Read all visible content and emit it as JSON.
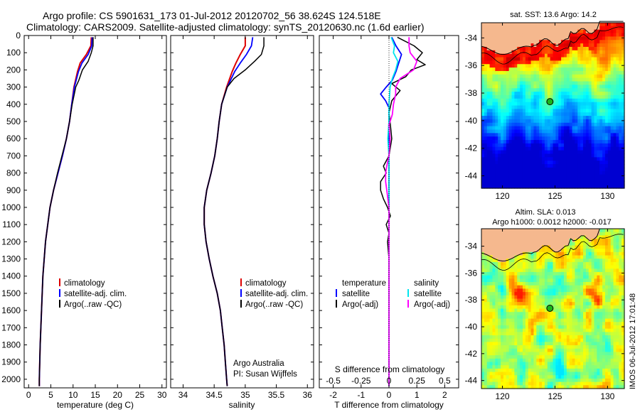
{
  "title": {
    "line1": "Argo profile: CS 5901631_173 01-Jul-2012 20120702_56 38.624S 124.518E",
    "line2": "Climatology: CARS2009. Satellite-adjusted climatology: synTS_20120630.nc (1.6d earlier)"
  },
  "colors": {
    "climatology": "#dd0000",
    "satellite": "#0000ff",
    "argo": "#000000",
    "sal_satellite": "#00e5ee",
    "sal_argo": "#ff00ff",
    "land": "#f5b88e",
    "marker": "#1ab31a"
  },
  "chart_data": [
    {
      "type": "line",
      "name": "temperature-panel",
      "xlabel": "temperature (deg C)",
      "ylabel": "",
      "xlim": [
        -1,
        31
      ],
      "ylim": [
        2050,
        0
      ],
      "xticks": [
        "0",
        "5",
        "10",
        "15",
        "20",
        "25",
        "30"
      ],
      "yticks": [
        "0",
        "100",
        "200",
        "300",
        "400",
        "500",
        "600",
        "700",
        "800",
        "900",
        "1000",
        "1100",
        "1200",
        "1300",
        "1400",
        "1500",
        "1600",
        "1700",
        "1800",
        "1900",
        "2000"
      ],
      "legend": [
        "climatology",
        "satellite-adj. clim.",
        "Argo(..raw -QC)"
      ],
      "series": [
        {
          "name": "climatology",
          "depth": [
            10,
            60,
            110,
            160,
            210,
            300,
            400,
            500,
            600,
            700,
            800,
            900,
            1000,
            1200,
            1400,
            1600,
            1800,
            2000,
            2040
          ],
          "values": [
            14.1,
            14.0,
            13.0,
            11.6,
            11.0,
            10.2,
            9.7,
            9.2,
            8.5,
            7.6,
            6.6,
            5.6,
            4.8,
            3.8,
            3.2,
            2.9,
            2.6,
            2.4,
            2.4
          ]
        },
        {
          "name": "satellite-adj. clim.",
          "depth": [
            10,
            60,
            110,
            160,
            210,
            300,
            400,
            500,
            600,
            700,
            800,
            900,
            1000,
            1200,
            1400,
            1600,
            1800,
            2000,
            2040
          ],
          "values": [
            14.3,
            14.2,
            13.4,
            12.0,
            11.2,
            10.3,
            9.7,
            9.2,
            8.5,
            7.6,
            6.6,
            5.6,
            4.8,
            3.8,
            3.2,
            2.9,
            2.6,
            2.4,
            2.4
          ]
        },
        {
          "name": "Argo(..raw -QC)",
          "depth": [
            10,
            60,
            100,
            150,
            200,
            260,
            300,
            400,
            500,
            600,
            700,
            800,
            900,
            1000,
            1200,
            1400,
            1600,
            1800,
            2000,
            2040
          ],
          "values": [
            14.5,
            14.5,
            14.1,
            13.4,
            12.1,
            11.3,
            10.6,
            9.8,
            9.2,
            8.5,
            7.5,
            6.5,
            5.6,
            4.8,
            3.8,
            3.2,
            2.9,
            2.6,
            2.4,
            2.4
          ]
        }
      ]
    },
    {
      "type": "line",
      "name": "salinity-panel",
      "xlabel": "salinity",
      "xlim": [
        33.8,
        36.1
      ],
      "ylim": [
        2050,
        0
      ],
      "xticks": [
        "34",
        "34.5",
        "35",
        "35.5",
        "36"
      ],
      "legend": [
        "climatology",
        "satellite-adj. clim.",
        "Argo(..raw -QC)"
      ],
      "annotation": [
        "Argo Australia",
        "PI: Susan Wijffels"
      ],
      "series": [
        {
          "name": "climatology",
          "depth": [
            10,
            60,
            110,
            160,
            210,
            300,
            400,
            500,
            600,
            700,
            800,
            900,
            1000,
            1100,
            1200,
            1300,
            1400,
            1500,
            1600,
            1700,
            1800,
            1900,
            2000,
            2040
          ],
          "values": [
            35.0,
            35.0,
            34.92,
            34.85,
            34.79,
            34.7,
            34.62,
            34.58,
            34.55,
            34.51,
            34.45,
            34.38,
            34.34,
            34.34,
            34.37,
            34.42,
            34.48,
            34.55,
            34.6,
            34.63,
            34.66,
            34.68,
            34.7,
            34.71
          ]
        },
        {
          "name": "satellite-adj. clim.",
          "depth": [
            10,
            60,
            110,
            160,
            210,
            300,
            400,
            500,
            600,
            700,
            800,
            900,
            1000,
            1100,
            1200,
            1300,
            1400,
            1500,
            1600,
            1700,
            1800,
            1900,
            2000,
            2040
          ],
          "values": [
            35.12,
            35.1,
            35.02,
            34.92,
            34.83,
            34.71,
            34.62,
            34.58,
            34.55,
            34.51,
            34.45,
            34.38,
            34.34,
            34.34,
            34.37,
            34.42,
            34.48,
            34.55,
            34.6,
            34.63,
            34.66,
            34.68,
            34.7,
            34.71
          ]
        },
        {
          "name": "Argo(..raw -QC)",
          "depth": [
            10,
            60,
            110,
            150,
            200,
            250,
            300,
            400,
            500,
            600,
            700,
            800,
            900,
            1000,
            1100,
            1200,
            1300,
            1400,
            1500,
            1600,
            1700,
            1800,
            1900,
            2000,
            2040
          ],
          "values": [
            35.3,
            35.3,
            35.26,
            35.15,
            35.0,
            34.82,
            34.71,
            34.62,
            34.58,
            34.55,
            34.51,
            34.45,
            34.38,
            34.34,
            34.34,
            34.37,
            34.42,
            34.48,
            34.55,
            34.6,
            34.63,
            34.66,
            34.68,
            34.7,
            34.71
          ]
        }
      ]
    },
    {
      "type": "line",
      "name": "difference-panel",
      "xlabel": "T difference from climatology",
      "top_xlabel": "S difference from climatology",
      "xlim": [
        -2.5,
        2.5
      ],
      "ylim": [
        2050,
        0
      ],
      "xticks": [
        "-2",
        "-1",
        "0",
        "1",
        "2"
      ],
      "top_xticks": [
        "-0.5",
        "-0.25",
        "0",
        "0.25",
        "0.5"
      ],
      "legend_temperature": [
        "temperature",
        "satellite",
        "Argo(-adj)"
      ],
      "legend_salinity": [
        "salinity",
        "satellite",
        "Argo(-adj)"
      ],
      "series": [
        {
          "name": "temperature satellite",
          "depth": [
            10,
            60,
            110,
            160,
            210,
            260,
            300,
            340,
            380,
            420,
            500,
            700,
            1000,
            1500,
            2000,
            2040
          ],
          "values": [
            0.1,
            0.25,
            0.45,
            0.35,
            0.25,
            0.12,
            -0.1,
            -0.3,
            -0.12,
            0.0,
            0.0,
            0.0,
            0.0,
            0.0,
            0.0,
            0.0
          ]
        },
        {
          "name": "temperature Argo(-adj)",
          "depth": [
            10,
            60,
            100,
            140,
            170,
            200,
            240,
            280,
            320,
            380,
            450,
            520,
            600,
            700,
            760,
            800,
            850,
            900,
            950,
            1000,
            1050,
            1100,
            1150,
            1200,
            1300,
            1500,
            1800,
            2040
          ],
          "values": [
            0.3,
            0.9,
            1.2,
            1.0,
            1.3,
            0.8,
            0.6,
            0.1,
            0.4,
            0.1,
            0.0,
            0.05,
            0.1,
            0.0,
            -0.2,
            -0.1,
            -0.3,
            -0.3,
            -0.2,
            -0.05,
            0.05,
            -0.1,
            0.0,
            -0.05,
            0.0,
            0.0,
            0.0,
            0.0
          ]
        },
        {
          "name": "salinity satellite",
          "depth": [
            10,
            60,
            100,
            150,
            200,
            250,
            300,
            400,
            500,
            600,
            700,
            1000,
            1500,
            2000,
            2040
          ],
          "values": [
            0.02,
            0.05,
            0.04,
            0.08,
            0.06,
            0.03,
            0.01,
            0.0,
            0.0,
            -0.01,
            0.0,
            0.0,
            0.0,
            0.0,
            0.0
          ]
        },
        {
          "name": "salinity Argo(-adj)",
          "depth": [
            10,
            60,
            100,
            150,
            200,
            250,
            300,
            340,
            400,
            460,
            520,
            600,
            700,
            760,
            800,
            850,
            900,
            1000,
            1500,
            2000,
            2040
          ],
          "values": [
            0.18,
            0.18,
            0.19,
            0.25,
            0.22,
            0.1,
            0.06,
            0.06,
            0.04,
            0.03,
            0.0,
            0.01,
            0.0,
            -0.02,
            -0.03,
            -0.03,
            -0.02,
            0.0,
            0.0,
            0.0,
            0.0
          ]
        }
      ]
    },
    {
      "type": "heatmap",
      "name": "sst-map",
      "title": "sat. SST: 13.6  Argo: 14.2",
      "xticks": [
        "120",
        "125",
        "130"
      ],
      "yticks": [
        "-34",
        "-36",
        "-38",
        "-40",
        "-42",
        "-44"
      ],
      "marker": {
        "lon": 124.518,
        "lat": -38.624
      }
    },
    {
      "type": "heatmap",
      "name": "sla-map",
      "title_line1": "Altim. SLA: 0.013",
      "title_line2": "Argo h1000: 0.0012  h2000: -0.017",
      "xticks": [
        "120",
        "125",
        "130"
      ],
      "yticks": [
        "-34",
        "-36",
        "-38",
        "-40",
        "-42",
        "-44"
      ],
      "marker": {
        "lon": 124.518,
        "lat": -38.624
      }
    }
  ],
  "footer_stamp": "IMOS 06-Jul-2012 17:01:48"
}
